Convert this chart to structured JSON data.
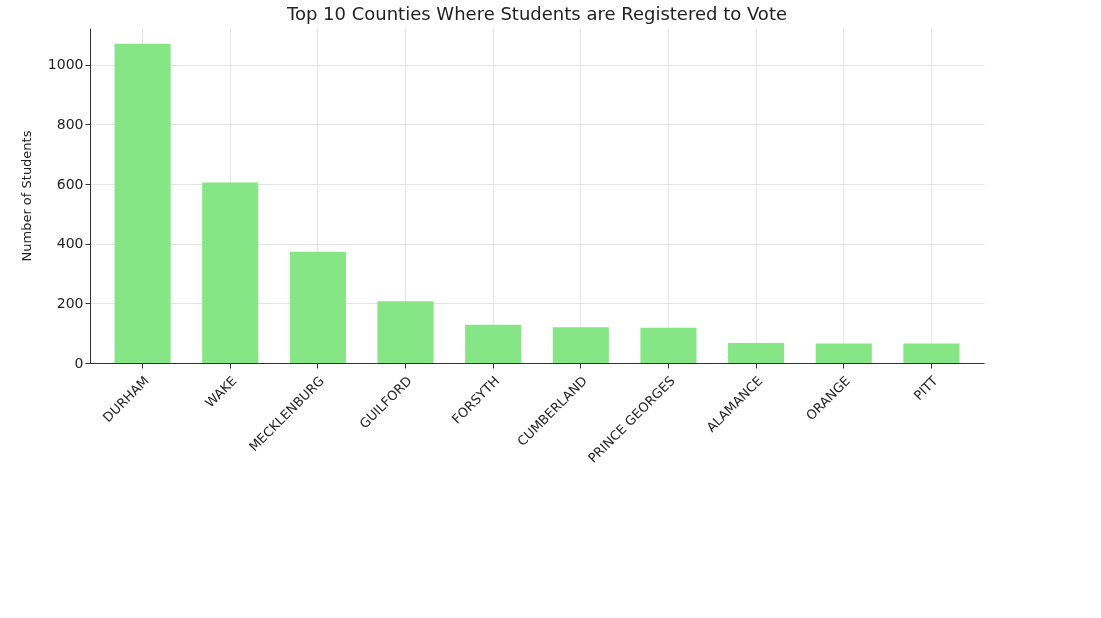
{
  "chart_data": {
    "type": "bar",
    "title": "Top 10 Counties Where Students are Registered to Vote",
    "ylabel": "Number of Students",
    "categories": [
      "DURHAM",
      "WAKE",
      "MECKLENBURG",
      "GUILFORD",
      "FORSYTH",
      "CUMBERLAND",
      "PRINCE GEORGES",
      "ALAMANCE",
      "ORANGE",
      "PITT"
    ],
    "values": [
      1070,
      605,
      373,
      207,
      128,
      120,
      118,
      67,
      65,
      65
    ],
    "color": "#86e686",
    "ylim": [
      0,
      1123
    ],
    "yticks": [
      0,
      200,
      400,
      600,
      800,
      1000
    ],
    "grid": true
  }
}
